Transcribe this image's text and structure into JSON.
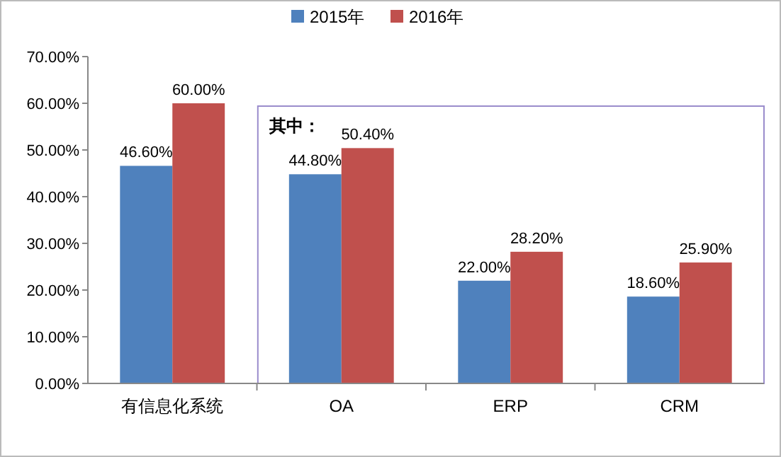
{
  "chart_data": {
    "type": "bar",
    "categories": [
      "有信息化系统",
      "OA",
      "ERP",
      "CRM"
    ],
    "series": [
      {
        "name": "2015年",
        "color": "#4f81bd",
        "values": [
          46.6,
          44.8,
          22.0,
          18.6
        ],
        "value_labels": [
          "46.60%",
          "44.80%",
          "22.00%",
          "18.60%"
        ]
      },
      {
        "name": "2016年",
        "color": "#c0504d",
        "values": [
          60.0,
          50.4,
          28.2,
          25.9
        ],
        "value_labels": [
          "60.00%",
          "50.40%",
          "28.20%",
          "25.90%"
        ]
      }
    ],
    "ylim": [
      0,
      70
    ],
    "yticks": [
      {
        "value": 0,
        "label": "0.00%"
      },
      {
        "value": 10,
        "label": "10.00%"
      },
      {
        "value": 20,
        "label": "20.00%"
      },
      {
        "value": 30,
        "label": "30.00%"
      },
      {
        "value": 40,
        "label": "40.00%"
      },
      {
        "value": 50,
        "label": "50.00%"
      },
      {
        "value": 60,
        "label": "60.00%"
      },
      {
        "value": 70,
        "label": "70.00%"
      }
    ],
    "annotations": [
      "其中："
    ],
    "grid": false,
    "legend": "top"
  }
}
